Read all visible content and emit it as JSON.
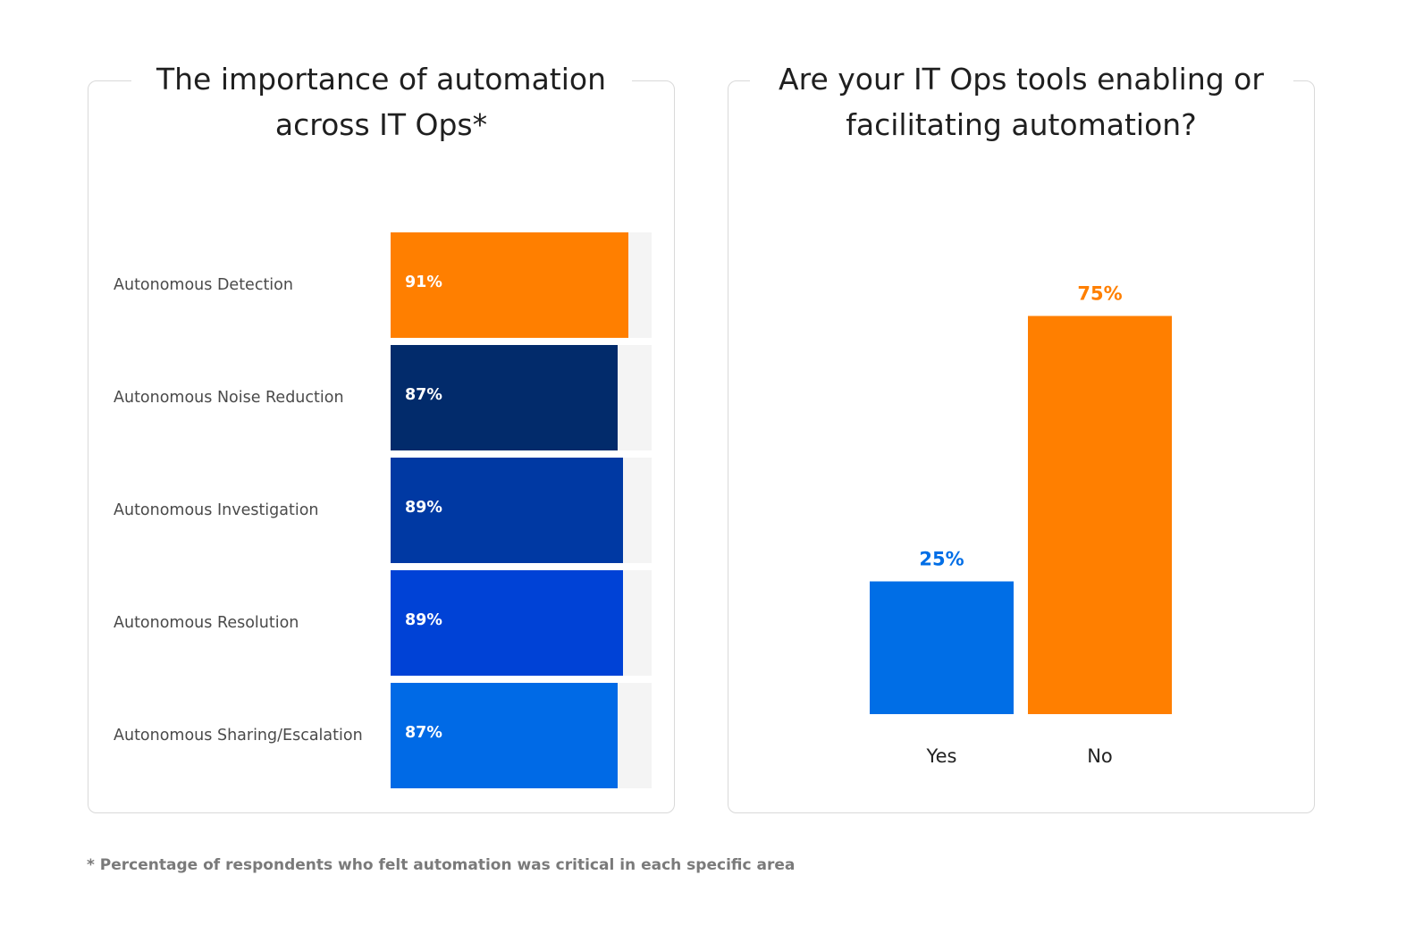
{
  "chart_data": [
    {
      "type": "bar",
      "orientation": "horizontal",
      "title": "The importance of automation across IT Ops*",
      "title_lines": [
        "The importance of automation",
        "across IT Ops*"
      ],
      "categories": [
        "Autonomous Detection",
        "Autonomous Noise Reduction",
        "Autonomous Investigation",
        "Autonomous Resolution",
        "Autonomous Sharing/Escalation"
      ],
      "values": [
        91,
        87,
        89,
        89,
        87
      ],
      "value_labels": [
        "91%",
        "87%",
        "89%",
        "89%",
        "87%"
      ],
      "colors": [
        "#ff7f00",
        "#022b6b",
        "#0039a3",
        "#0042d6",
        "#006ae6"
      ],
      "xlim": [
        0,
        100
      ],
      "grid": false,
      "legend": "none"
    },
    {
      "type": "bar",
      "orientation": "vertical",
      "title": "Are your IT Ops tools enabling or facilitating automation?",
      "title_lines": [
        "Are your IT Ops tools enabling or",
        "facilitating automation?"
      ],
      "categories": [
        "Yes",
        "No"
      ],
      "values": [
        25,
        75
      ],
      "value_labels": [
        "25%",
        "75%"
      ],
      "colors": [
        "#006ee6",
        "#ff7f00"
      ],
      "ylim": [
        0,
        100
      ],
      "grid": false,
      "legend": "none"
    }
  ],
  "footnote": "* Percentage of respondents who felt automation was critical in each specific area",
  "track_color": "#f4f4f4"
}
